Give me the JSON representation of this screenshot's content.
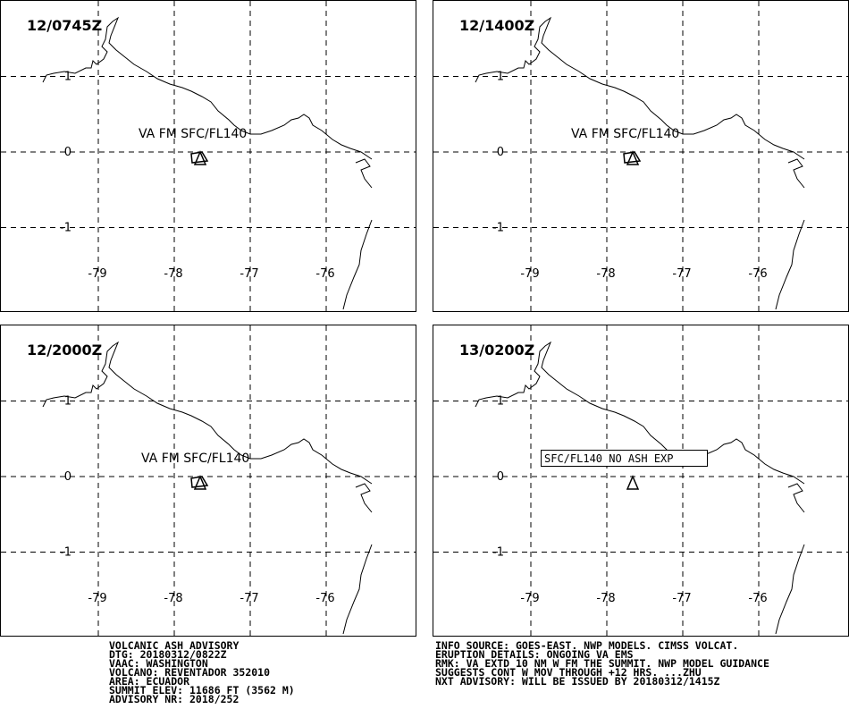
{
  "panels": [
    {
      "time": "12/0745Z",
      "label": "VA FM SFC/FL140"
    },
    {
      "time": "12/1400Z",
      "label": "VA FM SFC/FL140"
    },
    {
      "time": "12/2000Z",
      "label": "VA FM SFC/FL140"
    },
    {
      "time": "13/0200Z",
      "label": "SFC/FL140 NO ASH EXP"
    }
  ],
  "lat_ticks": [
    1,
    0,
    -1
  ],
  "lon_ticks": [
    -79,
    -78,
    -77,
    -76
  ],
  "advisory_left": [
    "VOLCANIC ASH ADVISORY",
    "DTG: 20180312/0822Z",
    "VAAC: WASHINGTON",
    "VOLCANO: REVENTADOR 352010",
    "AREA: ECUADOR",
    "SUMMIT ELEV: 11686 FT (3562 M)",
    "ADVISORY NR: 2018/252"
  ],
  "advisory_right": [
    "INFO SOURCE: GOES-EAST. NWP MODELS. CIMSS VOLCAT.",
    "ERUPTION DETAILS: ONGOING VA EMS",
    "RMK: VA EXTD 10 NM W FM THE SUMMIT. NWP MODEL GUIDANCE",
    "SUGGESTS CONT W MOV THROUGH +12 HRS. ...ZHU",
    "NXT ADVISORY: WILL BE ISSUED BY 20180312/1415Z"
  ]
}
